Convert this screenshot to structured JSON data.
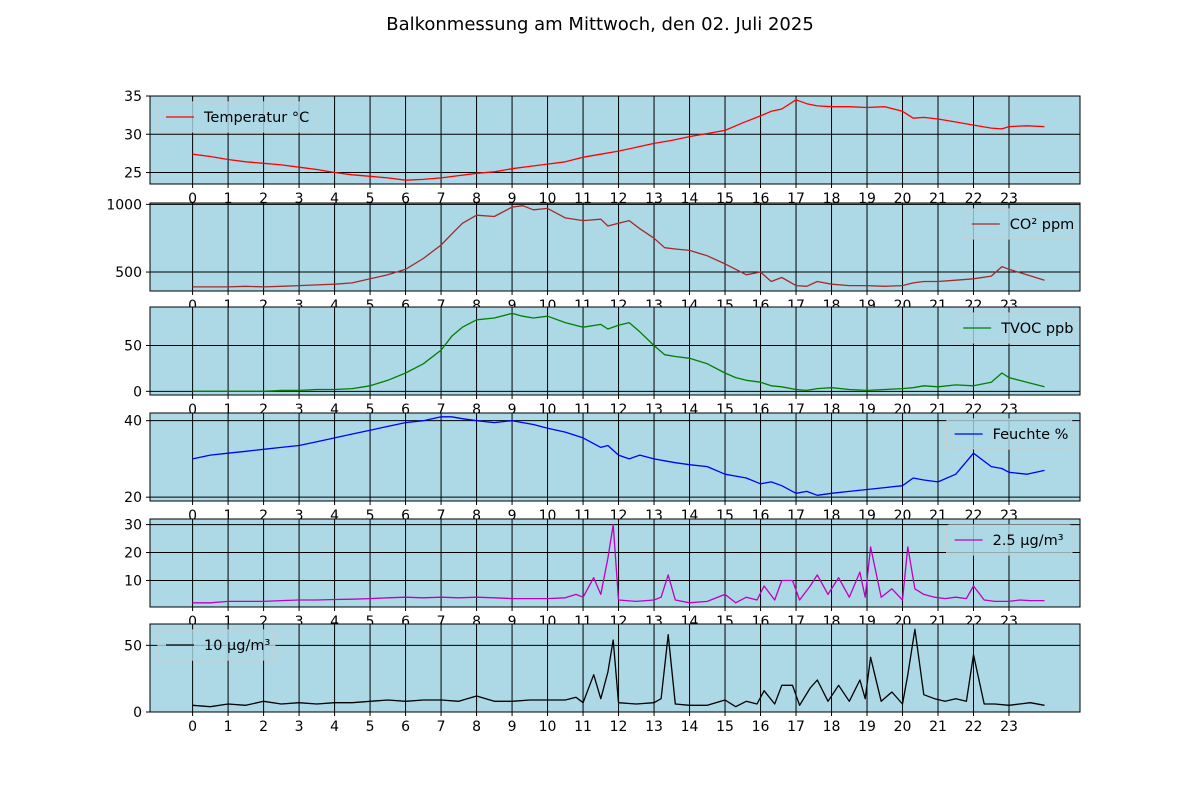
{
  "title": "Balkonmessung am Mittwoch, den 02. Juli 2025",
  "colors": {
    "panel_bg": "#add8e6",
    "grid": "#000000"
  },
  "chart_data": [
    {
      "type": "line",
      "series": [
        {
          "name": "Temperatur °C",
          "color": "#ff0000",
          "x": [
            0,
            0.5,
            1,
            1.5,
            2,
            2.5,
            3,
            3.5,
            4,
            4.5,
            5,
            5.5,
            6,
            6.5,
            7,
            7.5,
            8,
            8.5,
            9,
            9.5,
            10,
            10.5,
            11,
            11.5,
            12,
            12.5,
            13,
            13.5,
            14,
            14.5,
            15,
            15.5,
            16,
            16.3,
            16.6,
            17,
            17.3,
            17.6,
            18,
            18.5,
            19,
            19.5,
            20,
            20.3,
            20.6,
            21,
            21.5,
            22,
            22.5,
            22.8,
            23,
            23.5,
            24
          ],
          "y": [
            27.4,
            27.1,
            26.7,
            26.4,
            26.2,
            26.0,
            25.7,
            25.4,
            25.0,
            24.7,
            24.5,
            24.3,
            24.0,
            24.1,
            24.3,
            24.6,
            24.9,
            25.1,
            25.5,
            25.8,
            26.1,
            26.4,
            27.0,
            27.4,
            27.8,
            28.3,
            28.8,
            29.2,
            29.7,
            30.1,
            30.5,
            31.5,
            32.4,
            33.0,
            33.3,
            34.5,
            34.0,
            33.7,
            33.6,
            33.6,
            33.5,
            33.6,
            33.0,
            32.1,
            32.2,
            32.0,
            31.6,
            31.2,
            30.8,
            30.7,
            31.0,
            31.1,
            31.0
          ]
        }
      ],
      "xticks": [
        "0",
        "1",
        "2",
        "3",
        "4",
        "5",
        "6",
        "7",
        "8",
        "9",
        "10",
        "11",
        "12",
        "13",
        "14",
        "15",
        "16",
        "17",
        "18",
        "19",
        "20",
        "21",
        "22",
        "23"
      ],
      "yticks": [
        25,
        30,
        35
      ],
      "ylim": [
        23.5,
        35
      ],
      "xlim": [
        -1.2,
        25
      ],
      "legend_position": "upper-left",
      "grid": true
    },
    {
      "type": "line",
      "series": [
        {
          "name": "CO² ppm",
          "color": "#a52a2a",
          "x": [
            0,
            0.5,
            1,
            1.5,
            2,
            2.5,
            3,
            3.5,
            4,
            4.5,
            5,
            5.5,
            6,
            6.5,
            7,
            7.3,
            7.6,
            8,
            8.5,
            9,
            9.3,
            9.6,
            10,
            10.5,
            11,
            11.5,
            11.7,
            12,
            12.3,
            12.6,
            13,
            13.3,
            13.6,
            14,
            14.5,
            15,
            15.3,
            15.6,
            16,
            16.3,
            16.6,
            17,
            17.3,
            17.6,
            18,
            18.5,
            19,
            19.5,
            20,
            20.3,
            20.6,
            21,
            21.5,
            22,
            22.5,
            22.8,
            23,
            23.5,
            24
          ],
          "y": [
            390,
            390,
            390,
            395,
            390,
            395,
            400,
            405,
            410,
            420,
            450,
            480,
            520,
            600,
            700,
            780,
            860,
            920,
            910,
            980,
            990,
            960,
            970,
            900,
            880,
            890,
            840,
            860,
            880,
            820,
            750,
            680,
            670,
            660,
            620,
            560,
            520,
            480,
            500,
            430,
            460,
            400,
            395,
            430,
            410,
            400,
            400,
            395,
            400,
            420,
            430,
            430,
            440,
            450,
            470,
            540,
            520,
            480,
            440
          ]
        }
      ],
      "xticks": [
        "0",
        "1",
        "2",
        "3",
        "4",
        "5",
        "6",
        "7",
        "8",
        "9",
        "10",
        "11",
        "12",
        "13",
        "14",
        "15",
        "16",
        "17",
        "18",
        "19",
        "20",
        "21",
        "22",
        "23"
      ],
      "yticks": [
        500,
        1000
      ],
      "ylim": [
        360,
        1010
      ],
      "xlim": [
        -1.2,
        25
      ],
      "legend_position": "upper-right",
      "grid": true
    },
    {
      "type": "line",
      "series": [
        {
          "name": "TVOC ppb",
          "color": "#008000",
          "x": [
            0,
            0.5,
            1,
            1.5,
            2,
            2.5,
            3,
            3.5,
            4,
            4.5,
            5,
            5.5,
            6,
            6.5,
            7,
            7.3,
            7.6,
            8,
            8.5,
            9,
            9.3,
            9.6,
            10,
            10.5,
            11,
            11.5,
            11.7,
            12,
            12.3,
            12.6,
            13,
            13.3,
            13.6,
            14,
            14.5,
            15,
            15.3,
            15.6,
            16,
            16.3,
            16.6,
            17,
            17.3,
            17.6,
            18,
            18.5,
            19,
            19.5,
            20,
            20.3,
            20.6,
            21,
            21.5,
            22,
            22.5,
            22.8,
            23,
            23.5,
            24
          ],
          "y": [
            0,
            0,
            0,
            0,
            0,
            1,
            1,
            2,
            2,
            3,
            6,
            12,
            20,
            30,
            45,
            60,
            70,
            78,
            80,
            85,
            82,
            80,
            82,
            75,
            70,
            73,
            68,
            72,
            75,
            65,
            50,
            40,
            38,
            36,
            30,
            20,
            15,
            12,
            10,
            6,
            5,
            2,
            1,
            3,
            4,
            2,
            1,
            2,
            3,
            4,
            6,
            5,
            7,
            6,
            10,
            20,
            15,
            10,
            5
          ]
        }
      ],
      "xticks": [
        "0",
        "1",
        "2",
        "3",
        "4",
        "5",
        "6",
        "7",
        "8",
        "9",
        "10",
        "11",
        "12",
        "13",
        "14",
        "15",
        "16",
        "17",
        "18",
        "19",
        "20",
        "21",
        "22",
        "23"
      ],
      "yticks": [
        0,
        50
      ],
      "ylim": [
        -4,
        92
      ],
      "xlim": [
        -1.2,
        25
      ],
      "legend_position": "upper-right",
      "grid": true
    },
    {
      "type": "line",
      "series": [
        {
          "name": "Feuchte %",
          "color": "#0000ff",
          "x": [
            0,
            0.5,
            1,
            1.5,
            2,
            2.5,
            3,
            3.5,
            4,
            4.5,
            5,
            5.5,
            6,
            6.5,
            7,
            7.3,
            7.6,
            8,
            8.5,
            9,
            9.3,
            9.6,
            10,
            10.5,
            11,
            11.5,
            11.7,
            12,
            12.3,
            12.6,
            13,
            13.3,
            13.6,
            14,
            14.5,
            15,
            15.3,
            15.6,
            16,
            16.3,
            16.6,
            17,
            17.3,
            17.6,
            18,
            18.5,
            19,
            19.5,
            20,
            20.3,
            20.6,
            21,
            21.5,
            22,
            22.5,
            22.8,
            23,
            23.5,
            24
          ],
          "y": [
            30,
            31,
            31.5,
            32,
            32.5,
            33,
            33.5,
            34.5,
            35.5,
            36.5,
            37.5,
            38.5,
            39.5,
            40,
            41,
            41,
            40.5,
            40,
            39.5,
            40,
            39.5,
            39,
            38,
            37,
            35.5,
            33,
            33.5,
            31,
            30,
            31,
            30,
            29.5,
            29,
            28.5,
            28,
            26,
            25.5,
            25,
            23.5,
            24,
            23,
            21,
            21.5,
            20.5,
            21,
            21.5,
            22,
            22.5,
            23,
            25,
            24.5,
            24,
            26,
            31.5,
            28,
            27.5,
            26.5,
            26,
            27
          ]
        }
      ],
      "xticks": [
        "0",
        "1",
        "2",
        "3",
        "4",
        "5",
        "6",
        "7",
        "8",
        "9",
        "10",
        "11",
        "12",
        "13",
        "14",
        "15",
        "16",
        "17",
        "18",
        "19",
        "20",
        "21",
        "22",
        "23"
      ],
      "yticks": [
        20,
        40
      ],
      "ylim": [
        19,
        42
      ],
      "xlim": [
        -1.2,
        25
      ],
      "legend_position": "upper-right",
      "grid": true
    },
    {
      "type": "line",
      "series": [
        {
          "name": "2.5 µg/m³",
          "color": "#bf00bf",
          "x": [
            0,
            0.5,
            1,
            1.5,
            2,
            2.5,
            3,
            3.5,
            4,
            4.5,
            5,
            5.5,
            6,
            6.5,
            7,
            7.5,
            8,
            8.5,
            9,
            9.5,
            10,
            10.5,
            10.8,
            11,
            11.3,
            11.5,
            11.7,
            11.85,
            12,
            12.5,
            13,
            13.2,
            13.4,
            13.6,
            14,
            14.5,
            15,
            15.3,
            15.6,
            15.9,
            16.1,
            16.4,
            16.6,
            16.9,
            17.1,
            17.4,
            17.6,
            17.9,
            18.2,
            18.5,
            18.8,
            18.95,
            19.1,
            19.4,
            19.7,
            20,
            20.15,
            20.35,
            20.6,
            20.9,
            21.2,
            21.5,
            21.8,
            22,
            22.3,
            22.6,
            23,
            23.3,
            23.6,
            24
          ],
          "y": [
            2,
            2,
            2.5,
            2.5,
            2.5,
            2.8,
            3,
            3,
            3.2,
            3.3,
            3.5,
            3.8,
            4,
            3.8,
            4,
            3.8,
            4,
            3.8,
            3.5,
            3.5,
            3.5,
            3.8,
            5,
            4,
            11,
            5,
            18,
            30,
            3,
            2.5,
            3,
            4,
            12,
            3,
            2,
            2.5,
            5,
            2,
            4,
            3,
            8,
            3,
            10,
            10,
            3,
            8,
            12,
            5,
            11,
            4,
            13,
            4,
            22,
            4,
            7,
            3,
            22,
            7,
            5,
            4,
            3.5,
            4,
            3.5,
            8,
            3,
            2.5,
            2.5,
            3,
            2.8,
            2.8
          ]
        }
      ],
      "xticks": [
        "0",
        "1",
        "2",
        "3",
        "4",
        "5",
        "6",
        "7",
        "8",
        "9",
        "10",
        "11",
        "12",
        "13",
        "14",
        "15",
        "16",
        "17",
        "18",
        "19",
        "20",
        "21",
        "22",
        "23"
      ],
      "yticks": [
        10,
        20,
        30
      ],
      "ylim": [
        0.5,
        32
      ],
      "xlim": [
        -1.2,
        25
      ],
      "legend_position": "upper-right",
      "grid": true
    },
    {
      "type": "line",
      "series": [
        {
          "name": "10 µg/m³",
          "color": "#000000",
          "x": [
            0,
            0.5,
            1,
            1.5,
            2,
            2.5,
            3,
            3.5,
            4,
            4.5,
            5,
            5.5,
            6,
            6.5,
            7,
            7.5,
            8,
            8.5,
            9,
            9.5,
            10,
            10.5,
            10.8,
            11,
            11.3,
            11.5,
            11.7,
            11.85,
            12,
            12.5,
            13,
            13.2,
            13.4,
            13.6,
            14,
            14.5,
            15,
            15.3,
            15.6,
            15.9,
            16.1,
            16.4,
            16.6,
            16.9,
            17.1,
            17.4,
            17.6,
            17.9,
            18.2,
            18.5,
            18.8,
            18.95,
            19.1,
            19.4,
            19.7,
            20,
            20.15,
            20.35,
            20.6,
            20.9,
            21.2,
            21.5,
            21.8,
            22,
            22.3,
            22.6,
            23,
            23.3,
            23.6,
            24
          ],
          "y": [
            5,
            4,
            6,
            5,
            8,
            6,
            7,
            6,
            7,
            7,
            8,
            9,
            8,
            9,
            9,
            8,
            12,
            8,
            8,
            9,
            9,
            9,
            11,
            7,
            28,
            10,
            30,
            54,
            7,
            6,
            7,
            10,
            58,
            6,
            5,
            5,
            9,
            4,
            8,
            6,
            16,
            6,
            20,
            20,
            5,
            18,
            24,
            8,
            20,
            8,
            24,
            10,
            41,
            8,
            15,
            6,
            28,
            62,
            13,
            10,
            8,
            10,
            8,
            43,
            6,
            6,
            5,
            6,
            7,
            5
          ]
        }
      ],
      "xticks": [
        "0",
        "1",
        "2",
        "3",
        "4",
        "5",
        "6",
        "7",
        "8",
        "9",
        "10",
        "11",
        "12",
        "13",
        "14",
        "15",
        "16",
        "17",
        "18",
        "19",
        "20",
        "21",
        "22",
        "23"
      ],
      "yticks": [
        0,
        50
      ],
      "ylim": [
        0,
        66
      ],
      "xlim": [
        -1.2,
        25
      ],
      "legend_position": "upper-left",
      "grid": true
    }
  ]
}
